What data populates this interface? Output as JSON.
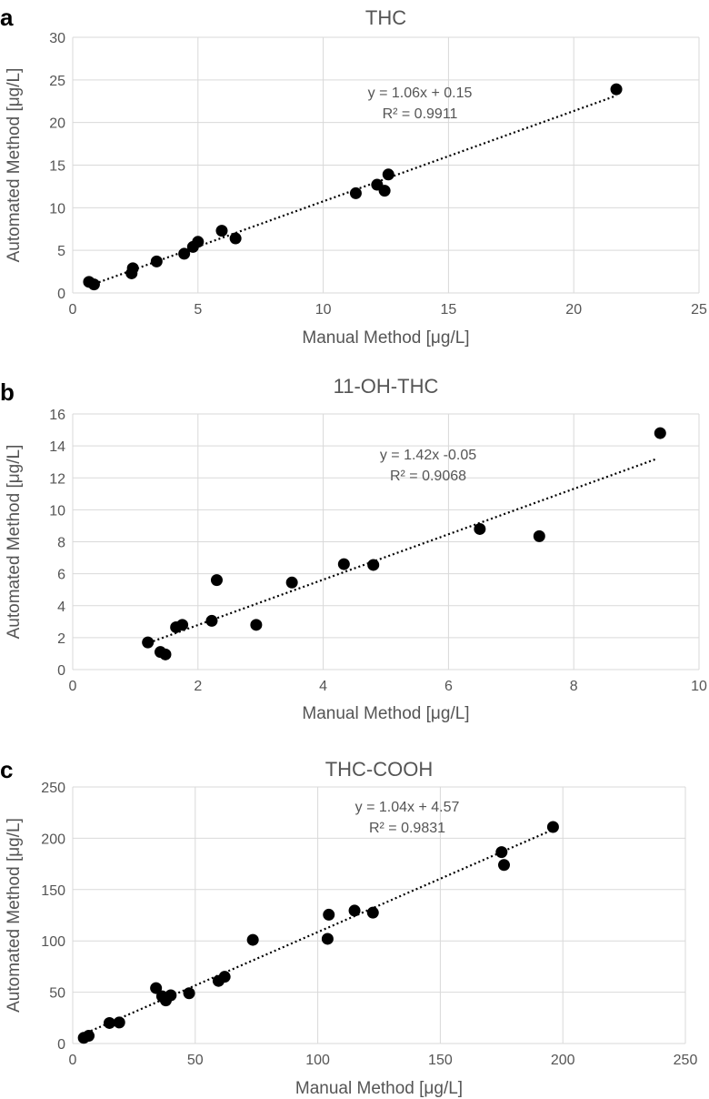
{
  "chart_data": [
    {
      "panel": "a",
      "type": "scatter",
      "title": "THC",
      "xlabel": "Manual Method [μg/L]",
      "ylabel": "Automated Method [μg/L]",
      "xlim": [
        0,
        25
      ],
      "ylim": [
        0,
        30
      ],
      "xticks": [
        0,
        5,
        10,
        15,
        20,
        25
      ],
      "yticks": [
        0,
        5,
        10,
        15,
        20,
        25,
        30
      ],
      "grid": true,
      "equation": "y = 1.06x + 0.15",
      "r_squared": "R² = 0.9911",
      "trendline": {
        "slope": 1.06,
        "intercept": 0.15,
        "x_range": [
          0.7,
          21.7
        ]
      },
      "points": [
        {
          "x": 0.65,
          "y": 1.3
        },
        {
          "x": 0.85,
          "y": 1.0
        },
        {
          "x": 2.35,
          "y": 2.3
        },
        {
          "x": 2.4,
          "y": 2.9
        },
        {
          "x": 3.35,
          "y": 3.7
        },
        {
          "x": 4.45,
          "y": 4.6
        },
        {
          "x": 4.8,
          "y": 5.4
        },
        {
          "x": 5.0,
          "y": 6.0
        },
        {
          "x": 5.95,
          "y": 7.3
        },
        {
          "x": 6.5,
          "y": 6.4
        },
        {
          "x": 11.3,
          "y": 11.7
        },
        {
          "x": 12.15,
          "y": 12.7
        },
        {
          "x": 12.45,
          "y": 12.0
        },
        {
          "x": 12.6,
          "y": 13.9
        },
        {
          "x": 21.7,
          "y": 23.9
        }
      ]
    },
    {
      "panel": "b",
      "type": "scatter",
      "title": "11-OH-THC",
      "xlabel": "Manual Method [μg/L]",
      "ylabel": "Automated Method [μg/L]",
      "xlim": [
        0,
        10
      ],
      "ylim": [
        0,
        16
      ],
      "xticks": [
        0,
        2,
        4,
        6,
        8,
        10
      ],
      "yticks": [
        0,
        2,
        4,
        6,
        8,
        10,
        12,
        14,
        16
      ],
      "grid": true,
      "equation": "y = 1.42x -0.05",
      "r_squared": "R² = 0.9068",
      "trendline": {
        "slope": 1.42,
        "intercept": -0.05,
        "x_range": [
          1.15,
          9.3
        ]
      },
      "points": [
        {
          "x": 1.2,
          "y": 1.7
        },
        {
          "x": 1.4,
          "y": 1.1
        },
        {
          "x": 1.48,
          "y": 0.95
        },
        {
          "x": 1.65,
          "y": 2.65
        },
        {
          "x": 1.75,
          "y": 2.8
        },
        {
          "x": 2.22,
          "y": 3.05
        },
        {
          "x": 2.3,
          "y": 5.6
        },
        {
          "x": 2.93,
          "y": 2.8
        },
        {
          "x": 3.5,
          "y": 5.45
        },
        {
          "x": 4.33,
          "y": 6.6
        },
        {
          "x": 4.8,
          "y": 6.55
        },
        {
          "x": 6.5,
          "y": 8.8
        },
        {
          "x": 7.45,
          "y": 8.35
        },
        {
          "x": 9.38,
          "y": 14.8
        }
      ]
    },
    {
      "panel": "c",
      "type": "scatter",
      "title": "THC-COOH",
      "xlabel": "Manual Method [μg/L]",
      "ylabel": "Automated Method [μg/L]",
      "xlim": [
        0,
        250
      ],
      "ylim": [
        0,
        250
      ],
      "xticks": [
        0,
        50,
        100,
        150,
        200,
        250
      ],
      "yticks": [
        0,
        50,
        100,
        150,
        200,
        250
      ],
      "grid": true,
      "equation": "y = 1.04x + 4.57",
      "r_squared": "R² = 0.9831",
      "trendline": {
        "slope": 1.04,
        "intercept": 4.57,
        "x_range": [
          4,
          196
        ]
      },
      "points": [
        {
          "x": 4.5,
          "y": 5.5
        },
        {
          "x": 6.5,
          "y": 7.5
        },
        {
          "x": 15,
          "y": 20
        },
        {
          "x": 19,
          "y": 20.5
        },
        {
          "x": 34,
          "y": 54
        },
        {
          "x": 36.5,
          "y": 46
        },
        {
          "x": 38,
          "y": 42
        },
        {
          "x": 40,
          "y": 47
        },
        {
          "x": 47.5,
          "y": 49
        },
        {
          "x": 59.5,
          "y": 61
        },
        {
          "x": 62,
          "y": 65
        },
        {
          "x": 73.5,
          "y": 101
        },
        {
          "x": 104,
          "y": 102
        },
        {
          "x": 104.5,
          "y": 125.5
        },
        {
          "x": 115,
          "y": 129.5
        },
        {
          "x": 122.5,
          "y": 127.5
        },
        {
          "x": 175,
          "y": 186.5
        },
        {
          "x": 176,
          "y": 174
        },
        {
          "x": 196,
          "y": 211
        }
      ]
    }
  ]
}
